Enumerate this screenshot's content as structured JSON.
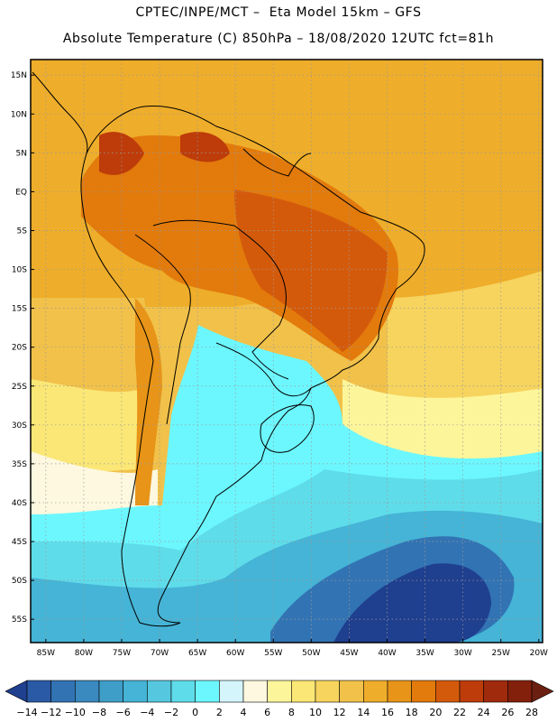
{
  "header": {
    "line1": "CPTEC/INPE/MCT –  Eta Model 15km – GFS",
    "line2": "Absolute Temperature (C) 850hPa – 18/08/2020 12UTC fct=81h"
  },
  "map": {
    "latitude_ticks": [
      "15N",
      "10N",
      "5N",
      "EQ",
      "5S",
      "10S",
      "15S",
      "20S",
      "25S",
      "30S",
      "35S",
      "40S",
      "45S",
      "50S",
      "55S"
    ],
    "longitude_ticks": [
      "85W",
      "80W",
      "75W",
      "70W",
      "65W",
      "60W",
      "55W",
      "50W",
      "45W",
      "40W",
      "35W",
      "30W",
      "25W",
      "20W"
    ],
    "lat_range_deg": [
      -58,
      17
    ],
    "lon_range_deg": [
      -87,
      -19.5
    ]
  },
  "colorbar": {
    "labels": [
      "-14",
      "-12",
      "-10",
      "-8",
      "-6",
      "-4",
      "-2",
      "0",
      "2",
      "4",
      "6",
      "8",
      "10",
      "12",
      "14",
      "16",
      "18",
      "20",
      "22",
      "24",
      "26",
      "28"
    ],
    "colors": [
      "#1f3f8f",
      "#2a5aa5",
      "#3273b3",
      "#3a89bf",
      "#3f9ec8",
      "#45b4d6",
      "#55c8e0",
      "#5fdcea",
      "#6cf7ff",
      "#d4f5fb",
      "#fdf8df",
      "#fdf59a",
      "#fbe776",
      "#f6d45e",
      "#f1c14a",
      "#eead2a",
      "#e79418",
      "#e27a0c",
      "#d45a0b",
      "#bd3c0a",
      "#9f2a0c",
      "#83200c",
      "#6a1f11"
    ]
  }
}
